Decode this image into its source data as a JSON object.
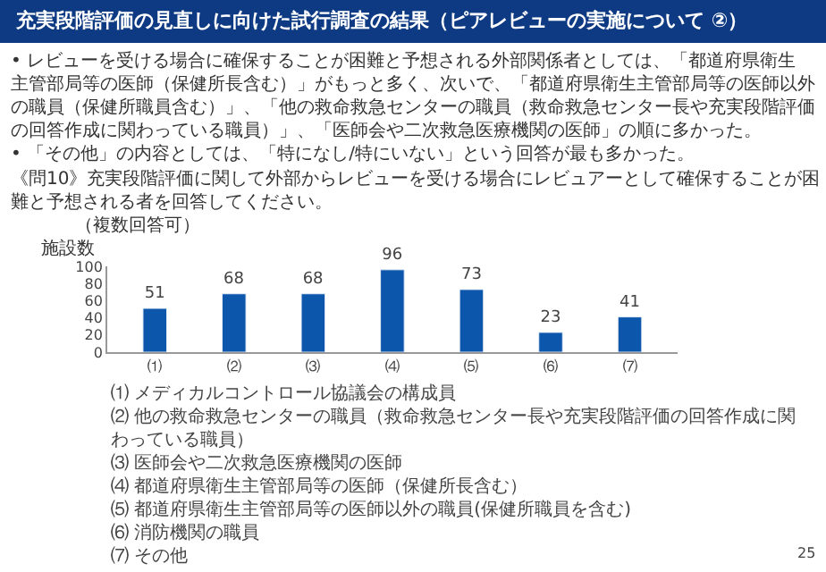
{
  "chart_data": {
    "type": "bar",
    "title": "充実段階評価の見直しに向けた試行調査の結果（ピアレビューの実施について ②）",
    "ylabel": "施設数",
    "categories": [
      "⑴",
      "⑵",
      "⑶",
      "⑷",
      "⑸",
      "⑹",
      "⑺"
    ],
    "values": [
      51,
      68,
      68,
      96,
      73,
      23,
      41
    ],
    "color": "#0c56ac",
    "ylim": [
      0,
      100
    ],
    "yticks": [
      0,
      20,
      40,
      60,
      80,
      100
    ],
    "data_labels": true,
    "annotations": [
      "• レビューを受ける場合に確保することが困難と予想される外部関係者としては、「都道府県衛生主管部局等の医師（保健所長含む）」がもっと多く、次いで、「都道府県衛生主管部局等の医師以外の職員（保健所職員含む）」、「他の救命救急センターの職員（救命救急センター長や充実段階評価の回答作成に関わっている職員）」、「医師会や二次救急医療機関の医師」の順に多かった。",
      "• 「その他」の内容としては、「特になし/特にいない」という回答が最も多かった。",
      "《問10》充実段階評価に関して外部からレビューを受ける場合にレビュアーとして確保することが困難と予想される者を回答してください。",
      "（複数回答可）",
      "⑴ メディカルコントロール協議会の構成員",
      "⑵ 他の救命救急センターの職員（救命救急センター長や充実段階評価の回答作成に関わっている職員）",
      "⑶ 医師会や二次救急医療機関の医師",
      "⑷ 都道府県衛生主管部局等の医師（保健所長含む）",
      "⑸ 都道府県衛生主管部局等の医師以外の職員(保健所職員を含む)",
      "⑹ 消防機関の職員",
      "⑺ その他",
      "25"
    ]
  }
}
